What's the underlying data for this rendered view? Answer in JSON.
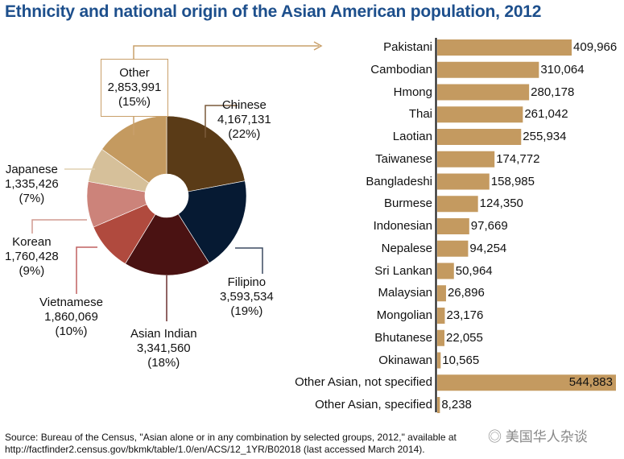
{
  "chart_data": [
    {
      "type": "pie",
      "title": "Ethnicity and national origin of the Asian American population, 2012",
      "donut": true,
      "slices": [
        {
          "name": "Chinese",
          "value": 4167131,
          "value_label": "4,167,131",
          "pct_label": "(22%)",
          "color": "#5a3b17"
        },
        {
          "name": "Filipino",
          "value": 3593534,
          "value_label": "3,593,534",
          "pct_label": "(19%)",
          "color": "#061a33"
        },
        {
          "name": "Asian Indian",
          "value": 3341560,
          "value_label": "3,341,560",
          "pct_label": "(18%)",
          "color": "#4a1212"
        },
        {
          "name": "Vietnamese",
          "value": 1860069,
          "value_label": "1,860,069",
          "pct_label": "(10%)",
          "color": "#b04a3e"
        },
        {
          "name": "Korean",
          "value": 1760428,
          "value_label": "1,760,428",
          "pct_label": "(9%)",
          "color": "#cc837a"
        },
        {
          "name": "Japanese",
          "value": 1335426,
          "value_label": "1,335,426",
          "pct_label": "(7%)",
          "color": "#d6c09a"
        },
        {
          "name": "Other",
          "value": 2853991,
          "value_label": "2,853,991",
          "pct_label": "(15%)",
          "color": "#c49a60"
        }
      ]
    },
    {
      "type": "bar",
      "orientation": "horizontal",
      "bar_color": "#c49a60",
      "xlim": [
        0,
        544883
      ],
      "categories": [
        "Pakistani",
        "Cambodian",
        "Hmong",
        "Thai",
        "Laotian",
        "Taiwanese",
        "Bangladeshi",
        "Burmese",
        "Indonesian",
        "Nepalese",
        "Sri Lankan",
        "Malaysian",
        "Mongolian",
        "Bhutanese",
        "Okinawan",
        "Other Asian, not specified",
        "Other Asian, specified"
      ],
      "values": [
        409966,
        310064,
        280178,
        261042,
        255934,
        174772,
        158985,
        124350,
        97669,
        94254,
        50964,
        26896,
        23176,
        22055,
        10565,
        544883,
        8238
      ],
      "labels": [
        "409,966",
        "310,064",
        "280,178",
        "261,042",
        "255,934",
        "174,772",
        "158,985",
        "124,350",
        "97,669",
        "94,254",
        "50,964",
        "26,896",
        "23,176",
        "22,055",
        "10,565",
        "544,883",
        "8,238"
      ]
    }
  ],
  "title": "Ethnicity and national origin of the Asian American population, 2012",
  "source_line1": "Source: Bureau of the Census, \"Asian alone or in any combination by selected groups, 2012,\" available at",
  "source_line2": "http://factfinder2.census.gov/bkmk/table/1.0/en/ACS/12_1YR/B02018 (last accessed March 2014).",
  "watermark": "美国华人杂谈"
}
